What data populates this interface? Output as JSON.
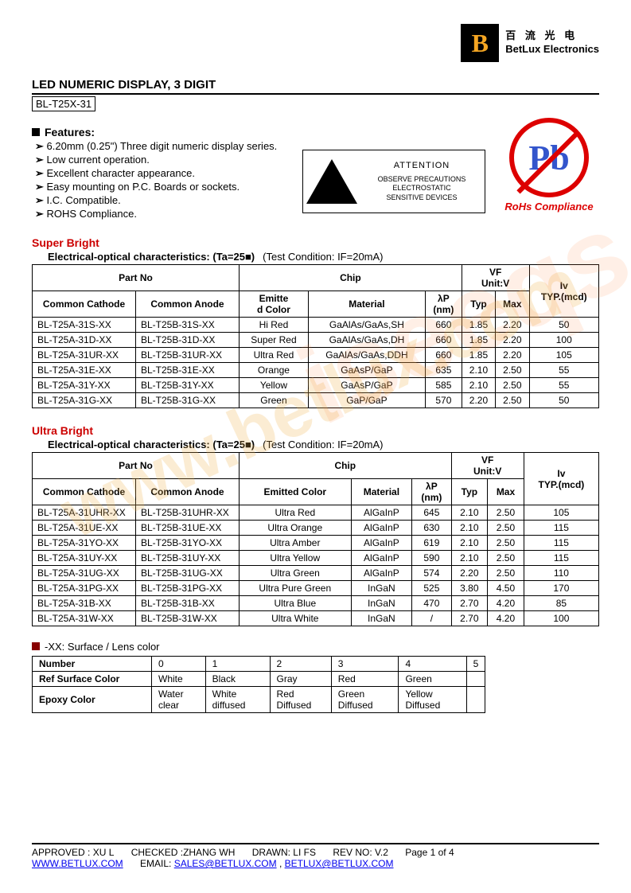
{
  "logo": {
    "cn": "百 流 光 电",
    "en": "BetLux Electronics"
  },
  "title": "LED NUMERIC DISPLAY, 3 DIGIT",
  "model": "BL-T25X-31",
  "features": {
    "heading": "Features:",
    "items": [
      "6.20mm (0.25\") Three digit numeric display series.",
      "Low current operation.",
      "Excellent character appearance.",
      "Easy mounting on P.C. Boards or sockets.",
      "I.C. Compatible.",
      "ROHS Compliance."
    ]
  },
  "esd": {
    "attention": "ATTENTION",
    "line1": "OBSERVE PRECAUTIONS",
    "line2": "ELECTROSTATIC",
    "line3": "SENSITIVE DEVICES"
  },
  "rohs": {
    "symbol": "Pb",
    "label": "RoHs Compliance"
  },
  "sections": {
    "super": {
      "title": "Super Bright",
      "subtitle": "Electrical-optical characteristics: (Ta=25■)",
      "condition": "(Test Condition: IF=20mA)"
    },
    "ultra": {
      "title": "Ultra Bright",
      "subtitle": "Electrical-optical characteristics: (Ta=25■)",
      "condition": "(Test Condition: IF=20mA)"
    }
  },
  "table_headers": {
    "partno": "Part No",
    "chip": "Chip",
    "vf": "VF",
    "vf_unit": "Unit:V",
    "iv": "Iv",
    "iv_unit": "TYP.(mcd)",
    "cc": "Common Cathode",
    "ca": "Common Anode",
    "emitted_short": "Emitted Color",
    "emitted_wrap1": "Emitte",
    "emitted_wrap2": "d Color",
    "material": "Material",
    "lambda": "λP",
    "nm": "(nm)",
    "typ": "Typ",
    "max": "Max"
  },
  "super_rows": [
    {
      "cc": "BL-T25A-31S-XX",
      "ca": "BL-T25B-31S-XX",
      "color": "Hi Red",
      "mat": "GaAlAs/GaAs,SH",
      "wl": "660",
      "typ": "1.85",
      "max": "2.20",
      "iv": "50"
    },
    {
      "cc": "BL-T25A-31D-XX",
      "ca": "BL-T25B-31D-XX",
      "color": "Super Red",
      "mat": "GaAlAs/GaAs,DH",
      "wl": "660",
      "typ": "1.85",
      "max": "2.20",
      "iv": "100"
    },
    {
      "cc": "BL-T25A-31UR-XX",
      "ca": "BL-T25B-31UR-XX",
      "color": "Ultra Red",
      "mat": "GaAlAs/GaAs,DDH",
      "wl": "660",
      "typ": "1.85",
      "max": "2.20",
      "iv": "105"
    },
    {
      "cc": "BL-T25A-31E-XX",
      "ca": "BL-T25B-31E-XX",
      "color": "Orange",
      "mat": "GaAsP/GaP",
      "wl": "635",
      "typ": "2.10",
      "max": "2.50",
      "iv": "55"
    },
    {
      "cc": "BL-T25A-31Y-XX",
      "ca": "BL-T25B-31Y-XX",
      "color": "Yellow",
      "mat": "GaAsP/GaP",
      "wl": "585",
      "typ": "2.10",
      "max": "2.50",
      "iv": "55"
    },
    {
      "cc": "BL-T25A-31G-XX",
      "ca": "BL-T25B-31G-XX",
      "color": "Green",
      "mat": "GaP/GaP",
      "wl": "570",
      "typ": "2.20",
      "max": "2.50",
      "iv": "50"
    }
  ],
  "ultra_rows": [
    {
      "cc": "BL-T25A-31UHR-XX",
      "ca": "BL-T25B-31UHR-XX",
      "color": "Ultra Red",
      "mat": "AlGaInP",
      "wl": "645",
      "typ": "2.10",
      "max": "2.50",
      "iv": "105"
    },
    {
      "cc": "BL-T25A-31UE-XX",
      "ca": "BL-T25B-31UE-XX",
      "color": "Ultra Orange",
      "mat": "AlGaInP",
      "wl": "630",
      "typ": "2.10",
      "max": "2.50",
      "iv": "115"
    },
    {
      "cc": "BL-T25A-31YO-XX",
      "ca": "BL-T25B-31YO-XX",
      "color": "Ultra Amber",
      "mat": "AlGaInP",
      "wl": "619",
      "typ": "2.10",
      "max": "2.50",
      "iv": "115"
    },
    {
      "cc": "BL-T25A-31UY-XX",
      "ca": "BL-T25B-31UY-XX",
      "color": "Ultra Yellow",
      "mat": "AlGaInP",
      "wl": "590",
      "typ": "2.10",
      "max": "2.50",
      "iv": "115"
    },
    {
      "cc": "BL-T25A-31UG-XX",
      "ca": "BL-T25B-31UG-XX",
      "color": "Ultra Green",
      "mat": "AlGaInP",
      "wl": "574",
      "typ": "2.20",
      "max": "2.50",
      "iv": "110"
    },
    {
      "cc": "BL-T25A-31PG-XX",
      "ca": "BL-T25B-31PG-XX",
      "color": "Ultra Pure Green",
      "mat": "InGaN",
      "wl": "525",
      "typ": "3.80",
      "max": "4.50",
      "iv": "170"
    },
    {
      "cc": "BL-T25A-31B-XX",
      "ca": "BL-T25B-31B-XX",
      "color": "Ultra Blue",
      "mat": "InGaN",
      "wl": "470",
      "typ": "2.70",
      "max": "4.20",
      "iv": "85"
    },
    {
      "cc": "BL-T25A-31W-XX",
      "ca": "BL-T25B-31W-XX",
      "color": "Ultra White",
      "mat": "InGaN",
      "wl": "/",
      "typ": "2.70",
      "max": "4.20",
      "iv": "100"
    }
  ],
  "color_note": "-XX: Surface / Lens color",
  "color_table": {
    "headers": [
      "Number",
      "Ref Surface Color",
      "Epoxy Color"
    ],
    "cols": [
      "0",
      "1",
      "2",
      "3",
      "4",
      "5"
    ],
    "surface": [
      "White",
      "Black",
      "Gray",
      "Red",
      "Green",
      ""
    ],
    "epoxy": [
      "Water clear",
      "White diffused",
      "Red Diffused",
      "Green Diffused",
      "Yellow Diffused",
      ""
    ]
  },
  "footer": {
    "approved": "APPROVED : XU L",
    "checked": "CHECKED :ZHANG WH",
    "drawn": "DRAWN: LI FS",
    "rev": "REV NO: V.2",
    "page": "Page 1 of 4",
    "url": "WWW.BETLUX.COM",
    "email_label": "EMAIL:",
    "email1": "SALES@BETLUX.COM",
    "email2": "BETLUX@BETLUX.COM"
  }
}
